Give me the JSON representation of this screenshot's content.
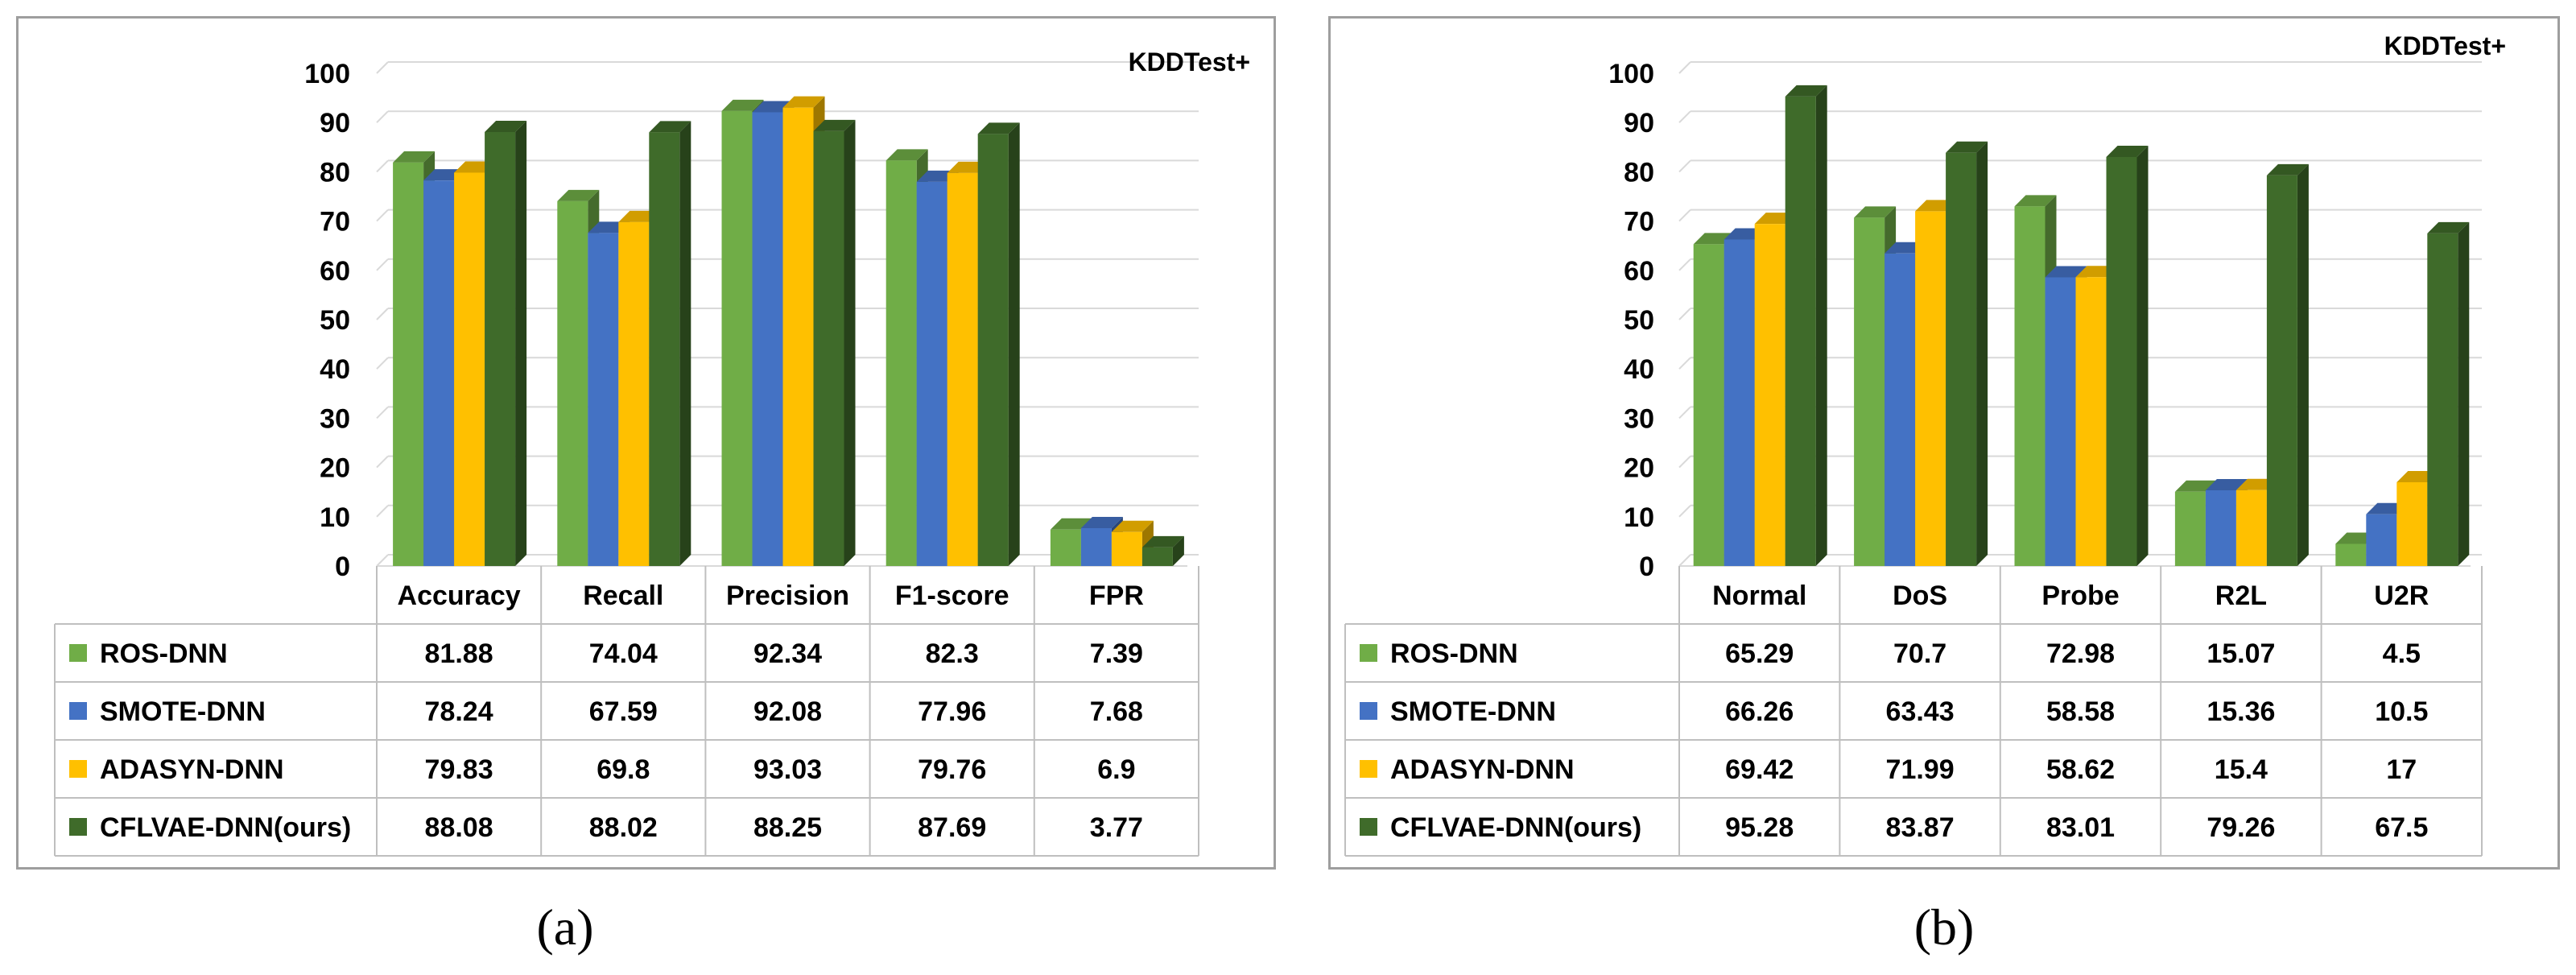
{
  "chart_data": [
    {
      "type": "bar",
      "panel_label": "(a)",
      "dataset_label": "KDDTest+",
      "categories": [
        "Accuracy",
        "Recall",
        "Precision",
        "F1-score",
        "FPR"
      ],
      "ylim": [
        0,
        100
      ],
      "yticks": [
        0,
        10,
        20,
        30,
        40,
        50,
        60,
        70,
        80,
        90,
        100
      ],
      "grid": true,
      "style": "3d-column-with-data-table",
      "series": [
        {
          "name": "ROS-DNN",
          "color": "#70ad47",
          "values": [
            81.88,
            74.04,
            92.34,
            82.3,
            7.39
          ],
          "labels": [
            "81.88",
            "74.04",
            "92.34",
            "82.3",
            "7.39"
          ]
        },
        {
          "name": "SMOTE-DNN",
          "color": "#4472c4",
          "values": [
            78.24,
            67.59,
            92.08,
            77.96,
            7.68
          ],
          "labels": [
            "78.24",
            "67.59",
            "92.08",
            "77.96",
            "7.68"
          ]
        },
        {
          "name": "ADASYN-DNN",
          "color": "#ffc000",
          "values": [
            79.83,
            69.8,
            93.03,
            79.76,
            6.9
          ],
          "labels": [
            "79.83",
            "69.8",
            "93.03",
            "79.76",
            "6.9"
          ]
        },
        {
          "name": "CFLVAE-DNN(ours)",
          "color": "#3f6b2a",
          "values": [
            88.08,
            88.02,
            88.25,
            87.69,
            3.77
          ],
          "labels": [
            "88.08",
            "88.02",
            "88.25",
            "87.69",
            "3.77"
          ]
        }
      ]
    },
    {
      "type": "bar",
      "panel_label": "(b)",
      "dataset_label": "KDDTest+",
      "categories": [
        "Normal",
        "DoS",
        "Probe",
        "R2L",
        "U2R"
      ],
      "ylim": [
        0,
        100
      ],
      "yticks": [
        0,
        10,
        20,
        30,
        40,
        50,
        60,
        70,
        80,
        90,
        100
      ],
      "grid": true,
      "style": "3d-column-with-data-table",
      "series": [
        {
          "name": "ROS-DNN",
          "color": "#70ad47",
          "values": [
            65.29,
            70.7,
            72.98,
            15.07,
            4.5
          ],
          "labels": [
            "65.29",
            "70.7",
            "72.98",
            "15.07",
            "4.5"
          ]
        },
        {
          "name": "SMOTE-DNN",
          "color": "#4472c4",
          "values": [
            66.26,
            63.43,
            58.58,
            15.36,
            10.5
          ],
          "labels": [
            "66.26",
            "63.43",
            "58.58",
            "15.36",
            "10.5"
          ]
        },
        {
          "name": "ADASYN-DNN",
          "color": "#ffc000",
          "values": [
            69.42,
            71.99,
            58.62,
            15.4,
            17
          ],
          "labels": [
            "69.42",
            "71.99",
            "58.62",
            "15.4",
            "17"
          ]
        },
        {
          "name": "CFLVAE-DNN(ours)",
          "color": "#3f6b2a",
          "values": [
            95.28,
            83.87,
            83.01,
            79.26,
            67.5
          ],
          "labels": [
            "95.28",
            "83.87",
            "83.01",
            "79.26",
            "67.5"
          ]
        }
      ]
    }
  ]
}
